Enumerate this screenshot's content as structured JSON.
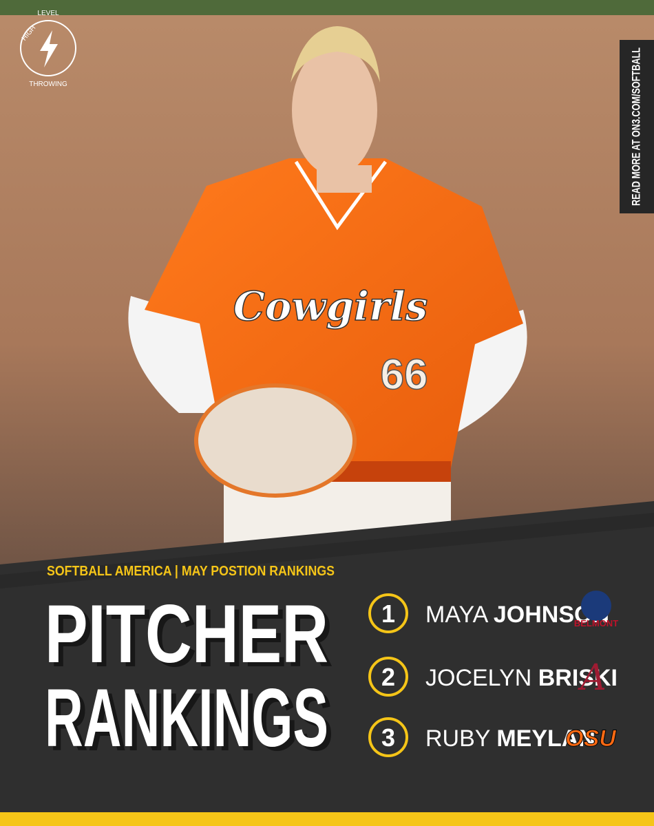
{
  "logo_text": [
    "HIGH",
    "LEVEL",
    "THROWING"
  ],
  "side_banner": "READ MORE AT ON3.COM/SOFTBALL",
  "photo": {
    "jersey_text": "Cowgirls",
    "jersey_number": "66"
  },
  "kicker": "SOFTBALL AMERICA | MAY POSTION RANKINGS",
  "title": [
    "PITCHER",
    "RANKINGS"
  ],
  "rankings": [
    {
      "rank": 1,
      "first_name": "MAYA",
      "last_name": "JOHNSON",
      "team_logo_text": "BELMONT"
    },
    {
      "rank": 2,
      "first_name": "JOCELYN",
      "last_name": "BRISKI",
      "team_logo_text": "A"
    },
    {
      "rank": 3,
      "first_name": "RUBY",
      "last_name": "MEYLAN",
      "team_logo_text": "OSU"
    }
  ]
}
